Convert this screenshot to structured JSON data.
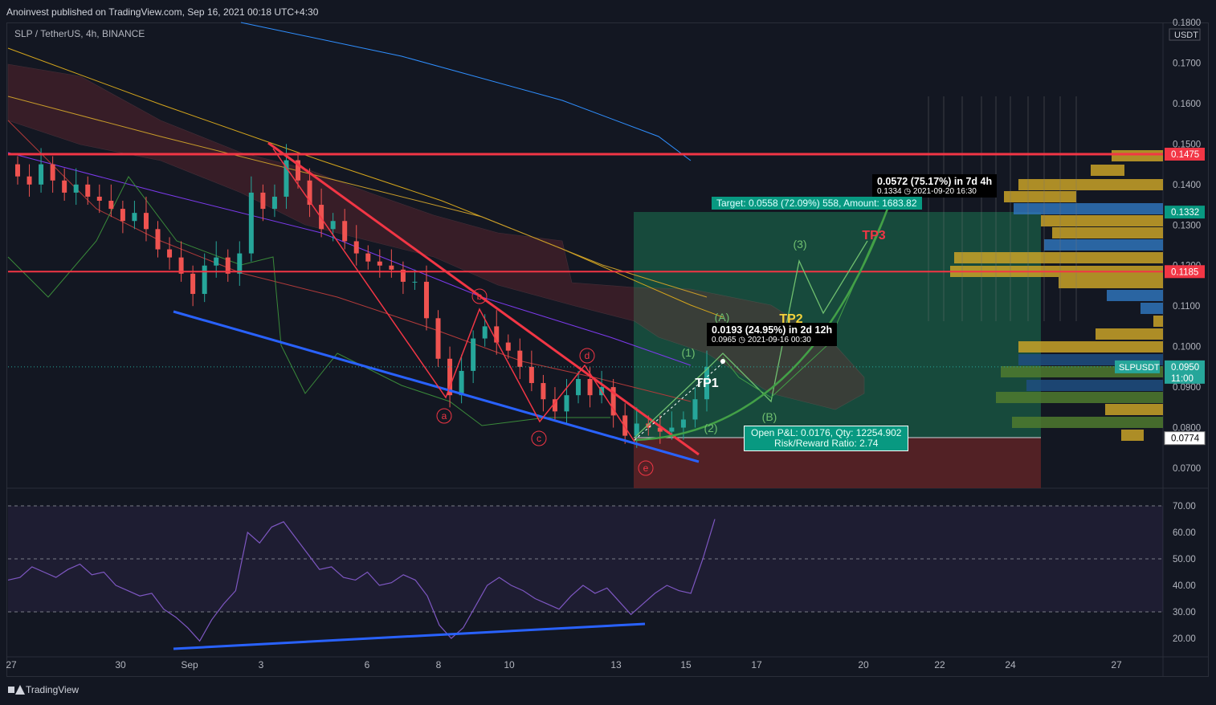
{
  "header": {
    "published": "Anoinvest published on TradingView.com, Sep 16, 2021 00:18 UTC+4:30"
  },
  "symbol": "SLP / TetherUS, 4h, BINANCE",
  "footer": {
    "brand": "TradingView"
  },
  "colors": {
    "background": "#131722",
    "up": "#26a69a",
    "down": "#ef5350",
    "resistance": "#f23645",
    "support": "#2962ff",
    "profit_zone": "#1a5c46",
    "loss_zone": "#5a2226"
  },
  "chart_data": [
    {
      "type": "candlestick",
      "title": "",
      "price_unit": "USDT",
      "x_ticks": [
        "27",
        "30",
        "Sep",
        "3",
        "6",
        "8",
        "10",
        "13",
        "15",
        "17",
        "20",
        "22",
        "24",
        "27"
      ],
      "y_ticks": [
        "0.1800",
        "0.1700",
        "0.1600",
        "0.1500",
        "0.1400",
        "0.1300",
        "0.1200",
        "0.1100",
        "0.1000",
        "0.0900",
        "0.0800",
        "0.0700"
      ],
      "ylim": [
        0.065,
        0.18
      ],
      "price_labels": [
        {
          "value": "0.1475",
          "color": "#f23645"
        },
        {
          "value": "0.1332",
          "color": "#089981"
        },
        {
          "value": "0.1185",
          "color": "#f23645"
        },
        {
          "value": "0.0950",
          "color": "#26a69a"
        },
        {
          "value": "0.0774",
          "color": "#ffffff"
        }
      ],
      "countdown": "11:00",
      "current_symbol_label": "SLPUSDT",
      "horizontal_levels": [
        0.1475,
        0.1185
      ],
      "wave_labels": [
        "a",
        "b",
        "c",
        "d",
        "e",
        "(1)",
        "(2)",
        "(3)",
        "(A)",
        "(B)"
      ],
      "targets": [
        "TP1",
        "TP2",
        "TP3"
      ],
      "close_series": [
        0.142,
        0.14,
        0.145,
        0.141,
        0.138,
        0.14,
        0.137,
        0.136,
        0.134,
        0.131,
        0.133,
        0.129,
        0.124,
        0.122,
        0.118,
        0.113,
        0.12,
        0.122,
        0.118,
        0.123,
        0.138,
        0.134,
        0.137,
        0.146,
        0.141,
        0.135,
        0.129,
        0.131,
        0.126,
        0.123,
        0.121,
        0.12,
        0.119,
        0.116,
        0.116,
        0.107,
        0.097,
        0.088,
        0.094,
        0.102,
        0.105,
        0.101,
        0.099,
        0.095,
        0.091,
        0.087,
        0.084,
        0.088,
        0.092,
        0.088,
        0.09,
        0.083,
        0.078,
        0.081,
        0.08,
        0.079,
        0.08,
        0.082,
        0.087,
        0.095
      ],
      "annotations": {
        "measure_short": {
          "main": "0.0193 (24.95%) in 2d 12h",
          "sub": "0.0965",
          "time": "2021-09-16  00:30"
        },
        "measure_long": {
          "main": "0.0572 (75.17%) in 7d 4h",
          "sub": "0.1334",
          "time": "2021-09-20  16:30"
        },
        "target": "Target: 0.0558 (72.09%) 558, Amount: 1683.82",
        "position": {
          "pnl": "Open P&L: 0.0176, Qty: 12254.902",
          "rr": "Risk/Reward Ratio: 2.74"
        }
      }
    },
    {
      "type": "line",
      "title": "",
      "y_ticks": [
        "70.00",
        "60.00",
        "50.00",
        "40.00",
        "30.00",
        "20.00"
      ],
      "ylim": [
        15,
        72
      ],
      "bands": [
        70,
        50,
        30
      ],
      "values": [
        42,
        43,
        47,
        45,
        43,
        46,
        48,
        44,
        45,
        40,
        38,
        36,
        37,
        31,
        28,
        24,
        19,
        27,
        33,
        38,
        60,
        56,
        62,
        64,
        58,
        52,
        46,
        47,
        43,
        42,
        45,
        40,
        41,
        44,
        42,
        36,
        25,
        20,
        24,
        32,
        40,
        43,
        40,
        38,
        35,
        33,
        31,
        36,
        40,
        37,
        39,
        34,
        29,
        33,
        37,
        40,
        38,
        37,
        50,
        65
      ],
      "divergence_line": [
        [
          0,
          18
        ],
        [
          52,
          24
        ]
      ]
    }
  ]
}
